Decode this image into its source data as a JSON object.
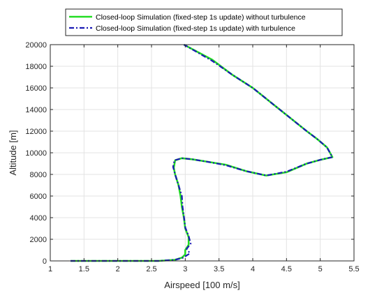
{
  "chart_data": {
    "type": "line",
    "xlabel": "Airspeed [100 m/s]",
    "ylabel": "Altitude [m]",
    "xlim": [
      1,
      5.5
    ],
    "ylim": [
      0,
      20000
    ],
    "xticks": [
      1,
      1.5,
      2,
      2.5,
      3,
      3.5,
      4,
      4.5,
      5,
      5.5
    ],
    "yticks": [
      0,
      2000,
      4000,
      6000,
      8000,
      10000,
      12000,
      14000,
      16000,
      18000,
      20000
    ],
    "xtick_labels": [
      "1",
      "1.5",
      "2",
      "2.5",
      "3",
      "3.5",
      "4",
      "4.5",
      "5",
      "5.5"
    ],
    "ytick_labels": [
      "0",
      "2000",
      "4000",
      "6000",
      "8000",
      "10000",
      "12000",
      "14000",
      "16000",
      "18000",
      "20000"
    ],
    "grid": true,
    "legend_position": "top",
    "series": [
      {
        "name": "Closed-loop Simulation (fixed-step 1s update) without turbulence",
        "color": "#22dd22",
        "line_style": "solid",
        "x": [
          1.3,
          2.6,
          2.85,
          2.95,
          3.0,
          3.0,
          3.05,
          3.05,
          3.0,
          2.98,
          2.95,
          2.93,
          2.9,
          2.85,
          2.83,
          2.85,
          2.95,
          3.1,
          3.3,
          3.6,
          3.9,
          4.2,
          4.5,
          4.8,
          5.0,
          5.18,
          5.1,
          4.95,
          4.8,
          4.6,
          4.3,
          4.0,
          3.7,
          3.4,
          2.98
        ],
        "y": [
          0,
          0,
          100,
          300,
          600,
          1000,
          1500,
          2200,
          3000,
          4000,
          5000,
          6000,
          7000,
          8000,
          8600,
          9300,
          9500,
          9400,
          9200,
          8900,
          8300,
          7900,
          8200,
          9000,
          9350,
          9600,
          10500,
          11300,
          12000,
          13000,
          14500,
          16000,
          17200,
          18600,
          20000
        ]
      },
      {
        "name": "Closed-loop Simulation (fixed-step 1s update) with turbulence",
        "color": "#1a1ab4",
        "line_style": "dash-dot",
        "x": [
          1.3,
          2.6,
          2.85,
          2.97,
          3.07,
          3.02,
          3.08,
          3.05,
          3.0,
          2.98,
          2.96,
          2.95,
          2.9,
          2.85,
          2.82,
          2.84,
          2.95,
          3.1,
          3.3,
          3.6,
          3.9,
          4.2,
          4.5,
          4.8,
          5.0,
          5.18,
          5.1,
          4.95,
          4.8,
          4.6,
          4.3,
          4.0,
          3.7,
          3.4,
          2.98
        ],
        "y": [
          0,
          0,
          100,
          300,
          700,
          1100,
          1600,
          2300,
          3100,
          4100,
          5000,
          6000,
          7000,
          8000,
          8700,
          9300,
          9500,
          9400,
          9200,
          8850,
          8300,
          7900,
          8250,
          9000,
          9350,
          9600,
          10500,
          11300,
          12000,
          13000,
          14500,
          16000,
          17200,
          18500,
          20000
        ]
      }
    ]
  }
}
